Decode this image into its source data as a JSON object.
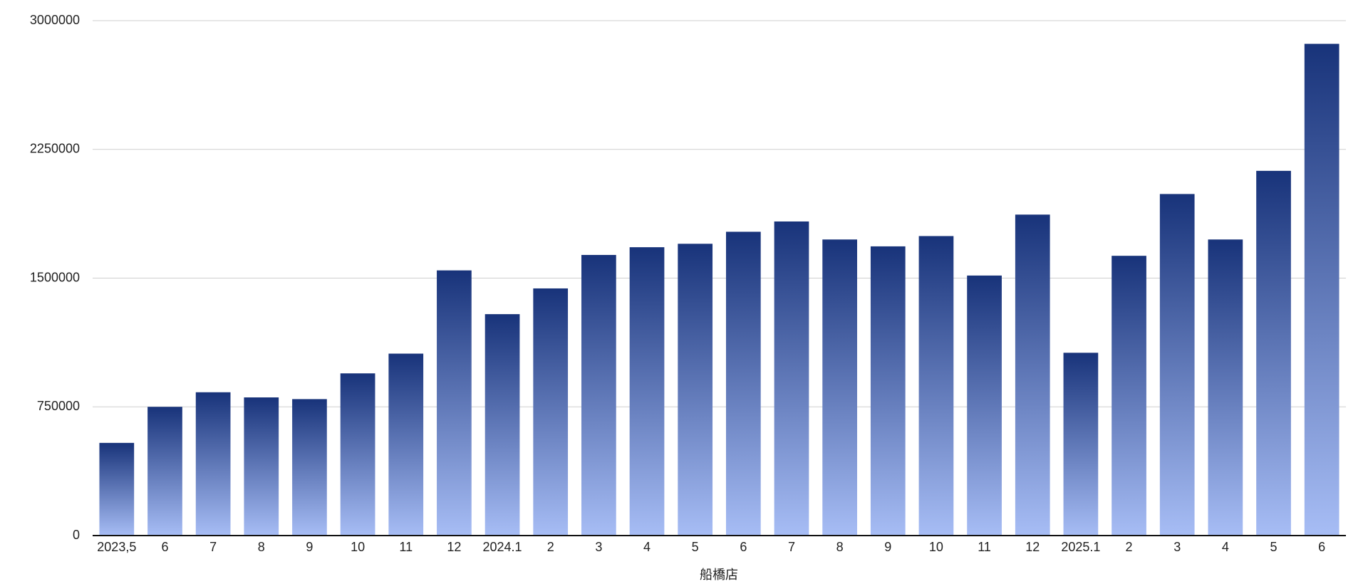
{
  "chart_data": {
    "type": "bar",
    "xlabel": "船橋店",
    "categories": [
      "2023,5",
      "6",
      "7",
      "8",
      "9",
      "10",
      "11",
      "12",
      "2024.1",
      "2",
      "3",
      "4",
      "5",
      "6",
      "7",
      "8",
      "9",
      "10",
      "11",
      "12",
      "2025.1",
      "2",
      "3",
      "4",
      "5",
      "6"
    ],
    "values": [
      540000,
      750000,
      835000,
      805000,
      795000,
      945000,
      1060000,
      1545000,
      1290000,
      1440000,
      1635000,
      1680000,
      1700000,
      1770000,
      1830000,
      1725000,
      1685000,
      1745000,
      1515000,
      1870000,
      1065000,
      1630000,
      1990000,
      1725000,
      2125000,
      2865000
    ],
    "gradient": [
      "#18337a",
      "#a7bdf5"
    ],
    "ylim": [
      0,
      3000000
    ],
    "yticks": [
      0,
      750000,
      1500000,
      2250000,
      3000000
    ],
    "grid": true
  }
}
